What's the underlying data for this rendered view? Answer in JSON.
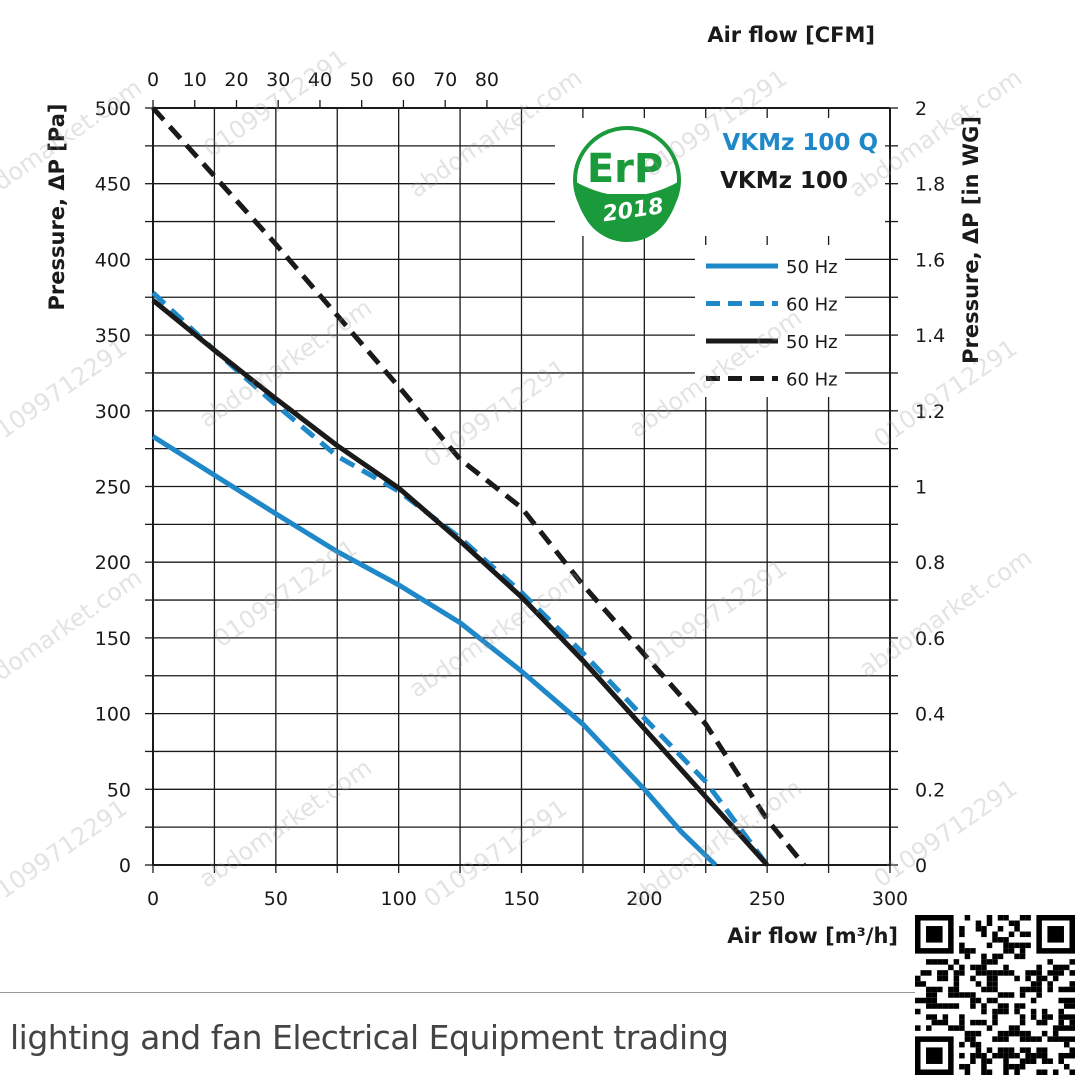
{
  "chart_data": {
    "type": "line",
    "x_bottom": {
      "label": "Air flow [m³/h]",
      "range": [
        0,
        300
      ],
      "ticks": [
        0,
        50,
        100,
        150,
        200,
        250,
        300
      ]
    },
    "x_top": {
      "label": "Air flow [CFM]",
      "ticks": [
        0,
        10,
        20,
        30,
        40,
        50,
        60,
        70,
        80
      ]
    },
    "y_left": {
      "label": "Pressure, ΔP [Pa]",
      "range": [
        0,
        500
      ],
      "ticks": [
        0,
        50,
        100,
        150,
        200,
        250,
        300,
        350,
        400,
        450,
        500
      ]
    },
    "y_right": {
      "label": "Pressure, ΔP [in WG]",
      "ticks": [
        "0",
        "0.2",
        "0.4",
        "0.6",
        "0.8",
        "1",
        "1.2",
        "1.4",
        "1.6",
        "1.8",
        "2"
      ]
    },
    "grid": true,
    "models": [
      {
        "name": "VKMz 100 Q",
        "color": "#1e88c8"
      },
      {
        "name": "VKMz 100",
        "color": "#1a1a1a"
      }
    ],
    "badge": {
      "top": "ErP",
      "bottom": "2018",
      "color": "#1a9a3a"
    },
    "series": [
      {
        "name": "50 Hz",
        "color": "#1e88c8",
        "dash": "solid",
        "x": [
          0,
          50,
          75,
          100,
          125,
          150,
          175,
          200,
          215,
          229
        ],
        "y": [
          283,
          232,
          207,
          185,
          160,
          128,
          93,
          50,
          22,
          0
        ]
      },
      {
        "name": "60 Hz",
        "color": "#1e88c8",
        "dash": "dashed",
        "x": [
          0,
          25,
          50,
          75,
          100,
          125,
          150,
          175,
          200,
          225,
          250
        ],
        "y": [
          378,
          340,
          304,
          270,
          247,
          216,
          180,
          140,
          97,
          55,
          0
        ]
      },
      {
        "name": "50 Hz",
        "color": "#1a1a1a",
        "dash": "solid",
        "x": [
          0,
          25,
          50,
          75,
          100,
          125,
          150,
          175,
          200,
          225,
          250
        ],
        "y": [
          373,
          340,
          308,
          277,
          249,
          214,
          177,
          135,
          90,
          45,
          0
        ]
      },
      {
        "name": "60 Hz",
        "color": "#1a1a1a",
        "dash": "dashed",
        "x": [
          0,
          25,
          50,
          75,
          100,
          125,
          150,
          175,
          200,
          225,
          250,
          265
        ],
        "y": [
          500,
          455,
          410,
          363,
          316,
          268,
          236,
          185,
          139,
          93,
          30,
          0
        ]
      }
    ]
  },
  "footer": {
    "text": "lighting and fan Electrical Equipment trading"
  },
  "watermark": {
    "text": "abdomarket.com",
    "text2": "01099712291"
  }
}
